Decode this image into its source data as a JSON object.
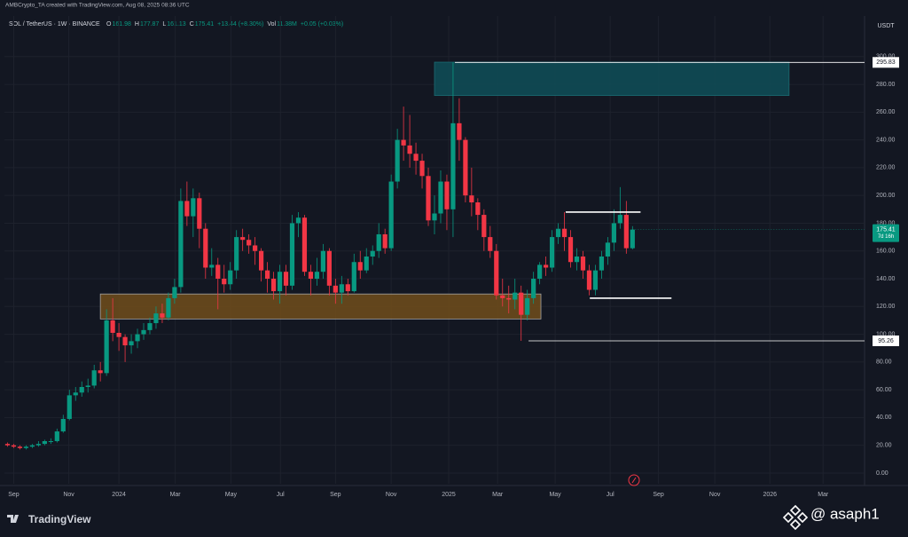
{
  "chart_data": {
    "type": "candlestick",
    "credit": "AMBCrypto_TA created with TradingView.com, Aug 08, 2025 08:36 UTC",
    "symbol": "SOL / TetherUS · 1W · BINANCE",
    "legend": [
      {
        "key": "O",
        "value": "161.98"
      },
      {
        "key": "H",
        "value": "177.87"
      },
      {
        "key": "L",
        "value": "161.13"
      },
      {
        "key": "C",
        "value": "175.41"
      },
      {
        "key": "",
        "value": "+13.44 (+8.30%)"
      },
      {
        "key": "Vol",
        "value": "11.38M"
      },
      {
        "key": "",
        "value": "+0.05 (+0.03%)"
      }
    ],
    "currency": "USDT",
    "countdown": "7d 16h",
    "brand": "TradingView",
    "watermark": "@ asaph1",
    "up_color": "#089981",
    "down_color": "#f23645",
    "open": [
      21,
      20,
      19,
      18,
      19,
      20,
      21,
      23,
      23,
      30,
      39,
      56,
      58,
      62,
      63,
      74,
      72,
      110,
      101,
      98,
      92,
      95,
      100,
      103,
      108,
      115,
      112,
      126,
      134,
      196,
      185,
      198,
      176,
      148,
      150,
      140,
      136,
      146,
      170,
      168,
      164,
      160,
      146,
      140,
      131,
      145,
      135,
      180,
      184,
      145,
      140,
      145,
      160,
      135,
      130,
      136,
      131,
      152,
      146,
      156,
      160,
      172,
      162,
      210,
      240,
      236,
      230,
      225,
      214,
      182,
      187,
      210,
      190,
      252,
      240,
      200,
      195,
      186,
      170,
      160,
      128,
      126,
      125,
      130,
      114,
      126,
      140,
      150,
      148,
      170,
      176,
      170,
      152,
      156,
      146,
      132,
      146,
      156,
      166,
      180,
      186,
      161.98
    ],
    "high": [
      22,
      21,
      20,
      20,
      21,
      23,
      24,
      25,
      32,
      42,
      60,
      62,
      66,
      68,
      78,
      80,
      118,
      126,
      108,
      100,
      100,
      104,
      108,
      112,
      120,
      122,
      130,
      140,
      205,
      210,
      205,
      202,
      180,
      162,
      155,
      150,
      152,
      175,
      176,
      172,
      170,
      162,
      152,
      145,
      150,
      150,
      186,
      188,
      186,
      150,
      155,
      165,
      162,
      140,
      142,
      140,
      158,
      160,
      162,
      164,
      180,
      176,
      215,
      248,
      264,
      258,
      238,
      230,
      220,
      200,
      218,
      215,
      295.83,
      270,
      242,
      220,
      198,
      190,
      178,
      165,
      140,
      135,
      140,
      135,
      132,
      145,
      152,
      156,
      175,
      180,
      188,
      175,
      162,
      160,
      150,
      150,
      160,
      170,
      190,
      206,
      196,
      177.87
    ],
    "low": [
      19,
      18,
      17,
      17,
      18,
      19,
      20,
      21,
      22,
      29,
      38,
      52,
      55,
      58,
      61,
      66,
      70,
      95,
      88,
      80,
      86,
      90,
      96,
      100,
      104,
      108,
      110,
      122,
      130,
      178,
      170,
      162,
      140,
      142,
      118,
      130,
      132,
      140,
      160,
      158,
      150,
      138,
      130,
      125,
      122,
      128,
      132,
      170,
      142,
      128,
      135,
      140,
      128,
      122,
      122,
      128,
      130,
      140,
      144,
      150,
      155,
      158,
      160,
      205,
      225,
      220,
      215,
      205,
      178,
      172,
      180,
      175,
      170,
      225,
      195,
      185,
      175,
      160,
      155,
      125,
      120,
      115,
      118,
      95.26,
      110,
      122,
      136,
      142,
      145,
      165,
      160,
      148,
      146,
      140,
      128,
      128,
      140,
      150,
      160,
      176,
      158,
      161.13
    ],
    "close": [
      20,
      19,
      18,
      19,
      20,
      21,
      23,
      23,
      30,
      39,
      56,
      58,
      62,
      63,
      74,
      72,
      110,
      101,
      98,
      92,
      95,
      100,
      103,
      108,
      115,
      112,
      126,
      134,
      196,
      185,
      198,
      176,
      148,
      150,
      140,
      136,
      146,
      170,
      168,
      164,
      160,
      146,
      140,
      131,
      145,
      135,
      180,
      184,
      145,
      140,
      145,
      160,
      135,
      130,
      136,
      131,
      152,
      146,
      156,
      160,
      172,
      162,
      210,
      240,
      236,
      230,
      225,
      214,
      182,
      187,
      210,
      190,
      252,
      240,
      200,
      195,
      186,
      170,
      160,
      128,
      126,
      125,
      130,
      114,
      126,
      140,
      150,
      148,
      170,
      176,
      170,
      152,
      156,
      146,
      132,
      146,
      156,
      166,
      180,
      186,
      161.98,
      175.41
    ],
    "xlim": [
      -0.5,
      138.5
    ],
    "xticks": [
      {
        "value": 1,
        "label": "Sep"
      },
      {
        "value": 9.9,
        "label": "Nov"
      },
      {
        "value": 18,
        "label": "2024"
      },
      {
        "value": 27.1,
        "label": "Mar"
      },
      {
        "value": 36.1,
        "label": "May"
      },
      {
        "value": 44.1,
        "label": "Jul"
      },
      {
        "value": 53,
        "label": "Sep"
      },
      {
        "value": 62,
        "label": "Nov"
      },
      {
        "value": 71.3,
        "label": "2025"
      },
      {
        "value": 79.2,
        "label": "Mar"
      },
      {
        "value": 88.5,
        "label": "May"
      },
      {
        "value": 97.4,
        "label": "Jul"
      },
      {
        "value": 105.2,
        "label": "Sep"
      },
      {
        "value": 114.3,
        "label": "Nov"
      },
      {
        "value": 123.2,
        "label": "2026"
      },
      {
        "value": 131.8,
        "label": "Mar"
      }
    ],
    "ylim": [
      -7.7,
      328
    ],
    "yticks": [
      {
        "value": 0,
        "label": "0.00"
      },
      {
        "value": 20,
        "label": "20.00"
      },
      {
        "value": 40,
        "label": "40.00"
      },
      {
        "value": 60,
        "label": "60.00"
      },
      {
        "value": 80,
        "label": "80.00"
      },
      {
        "value": 100,
        "label": "100.00"
      },
      {
        "value": 120,
        "label": "120.00"
      },
      {
        "value": 140,
        "label": "140.00"
      },
      {
        "value": 160,
        "label": "160.00"
      },
      {
        "value": 180,
        "label": "180.00"
      },
      {
        "value": 200,
        "label": "200.00"
      },
      {
        "value": 220,
        "label": "220.00"
      },
      {
        "value": 240,
        "label": "240.00"
      },
      {
        "value": 260,
        "label": "260.00"
      },
      {
        "value": 280,
        "label": "280.00"
      },
      {
        "value": 300,
        "label": "300.00"
      }
    ],
    "grid": true,
    "zones": [
      {
        "x": [
          69,
          126.3
        ],
        "y": [
          272,
          296
        ],
        "color": "#0f4b55"
      },
      {
        "x": [
          15,
          86.2
        ],
        "y": [
          111,
          129
        ],
        "color": "#6b4a1c"
      }
    ],
    "segments": [
      {
        "x": [
          90.2,
          102.3
        ],
        "y": 188
      },
      {
        "x": [
          94.1,
          107.3
        ],
        "y": 126
      }
    ],
    "levels": [
      {
        "value": 295.83,
        "from": 72.3
      },
      {
        "value": 95.26,
        "from": 84.2
      }
    ]
  }
}
